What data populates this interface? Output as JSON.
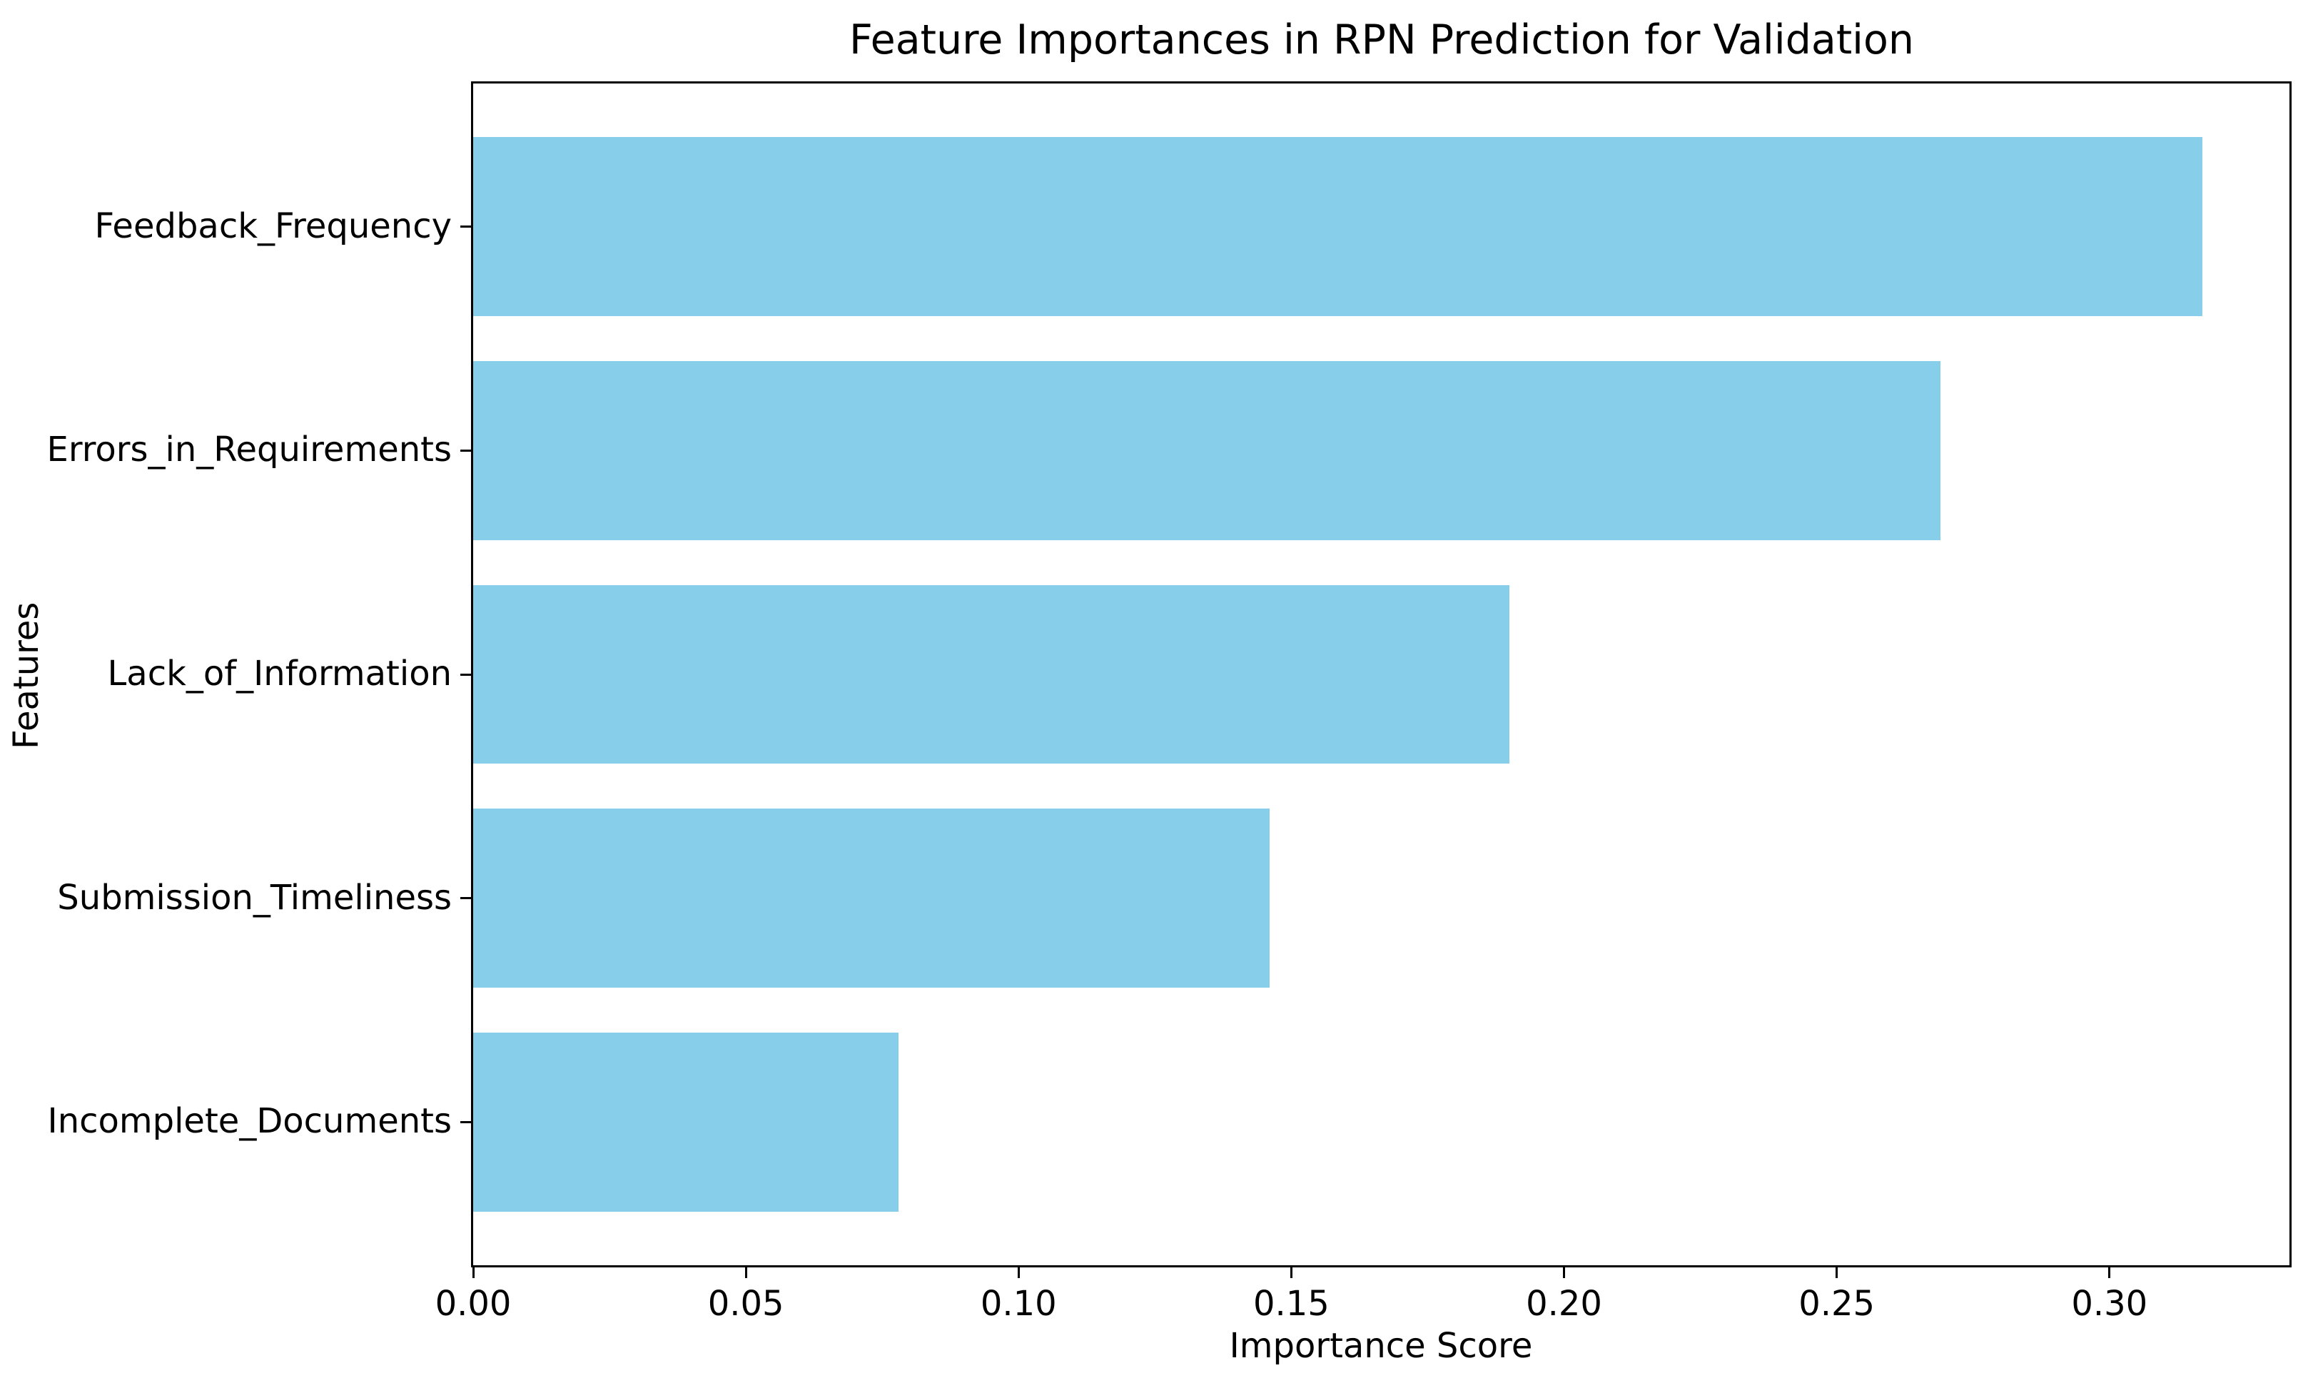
{
  "chart_data": {
    "type": "bar",
    "orientation": "horizontal",
    "title": "Feature Importances in RPN Prediction for Validation",
    "xlabel": "Importance Score",
    "ylabel": "Features",
    "categories": [
      "Feedback_Frequency",
      "Errors_in_Requirements",
      "Lack_of_Information",
      "Submission_Timeliness",
      "Incomplete_Documents"
    ],
    "values": [
      0.317,
      0.269,
      0.19,
      0.146,
      0.078
    ],
    "xlim": [
      0,
      0.333
    ],
    "xtick_labels": [
      "0.00",
      "0.05",
      "0.10",
      "0.15",
      "0.20",
      "0.25",
      "0.30"
    ],
    "xticks": [
      0.0,
      0.05,
      0.1,
      0.15,
      0.2,
      0.25,
      0.3
    ],
    "bar_color": "#87CEEB",
    "axis_color": "#000000",
    "text_color": "#000000",
    "background_color": "#FFFFFF",
    "grid": false,
    "legend": null
  }
}
